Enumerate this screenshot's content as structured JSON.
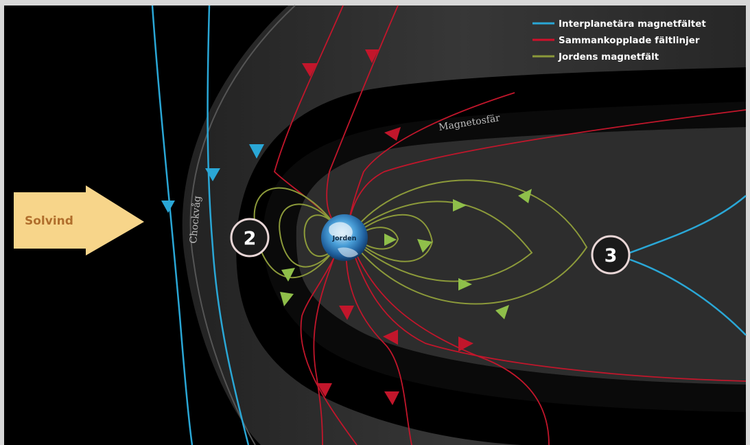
{
  "legend": {
    "items": [
      {
        "label": "Interplanetära magnetfältet",
        "color": "#2aa7d6"
      },
      {
        "label": "Sammankopplade fältlinjer",
        "color": "#d0102a"
      },
      {
        "label": "Jordens magnetfält",
        "color": "#8c9a3a"
      }
    ]
  },
  "labels": {
    "solar_wind": "Solvind",
    "bow_shock": "Chockvåg",
    "magnetosphere": "Magnetosfär",
    "earth": "Jorden",
    "point_2": "2",
    "point_3": "3"
  },
  "colors": {
    "background": "#000000",
    "frame": "#d8d8d8",
    "imf": "#2aa7d6",
    "reconnected": "#c2162b",
    "earth_field": "#8c9a3a",
    "earth_field_arrow": "#8fbf4a",
    "solar_wind_arrow": "#f7d58a",
    "sheath": "#3a3a3a"
  }
}
